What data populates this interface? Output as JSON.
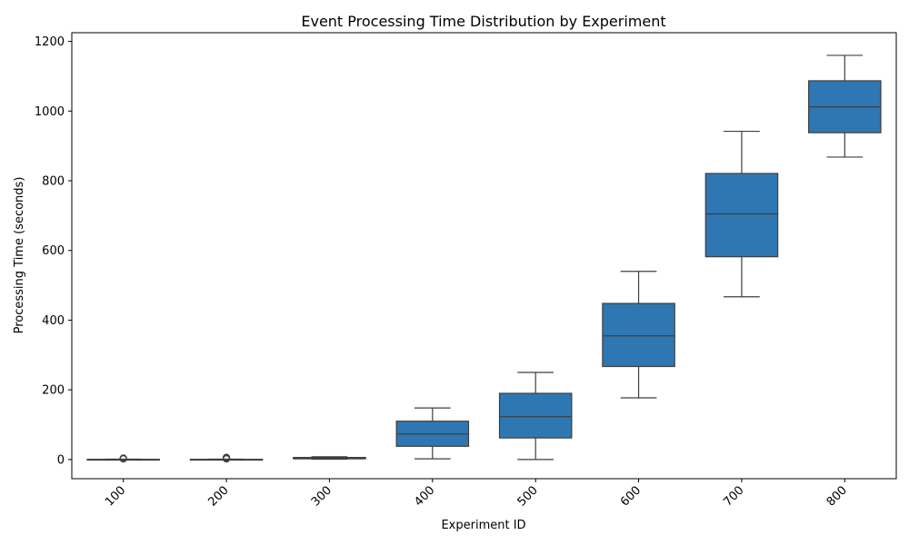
{
  "chart_data": {
    "type": "box",
    "title": "Event Processing Time Distribution by Experiment",
    "xlabel": "Experiment ID",
    "ylabel": "Processing Time (seconds)",
    "categories": [
      "100",
      "200",
      "300",
      "400",
      "500",
      "600",
      "700",
      "800"
    ],
    "ylim": [
      -55,
      1225
    ],
    "yticks": [
      0,
      200,
      400,
      600,
      800,
      1000,
      1200
    ],
    "grid": false,
    "legend": "none",
    "box_color": "#2f77b2",
    "line_color": "#3f3f3f",
    "boxes": [
      {
        "category": "100",
        "whisker_low": 0,
        "q1": 0,
        "median": 0,
        "q3": 0.5,
        "whisker_high": 1,
        "outliers": [
          2,
          3,
          4
        ]
      },
      {
        "category": "200",
        "whisker_low": 0,
        "q1": 0,
        "median": 0,
        "q3": 0.5,
        "whisker_high": 1,
        "outliers": [
          2,
          3,
          5,
          6
        ]
      },
      {
        "category": "300",
        "whisker_low": 1,
        "q1": 2,
        "median": 4,
        "q3": 6,
        "whisker_high": 8,
        "outliers": []
      },
      {
        "category": "400",
        "whisker_low": 2,
        "q1": 38,
        "median": 73,
        "q3": 110,
        "whisker_high": 148,
        "outliers": []
      },
      {
        "category": "500",
        "whisker_low": 0,
        "q1": 62,
        "median": 123,
        "q3": 190,
        "whisker_high": 250,
        "outliers": []
      },
      {
        "category": "600",
        "whisker_low": 177,
        "q1": 267,
        "median": 355,
        "q3": 448,
        "whisker_high": 540,
        "outliers": []
      },
      {
        "category": "700",
        "whisker_low": 467,
        "q1": 582,
        "median": 705,
        "q3": 821,
        "whisker_high": 942,
        "outliers": []
      },
      {
        "category": "800",
        "whisker_low": 868,
        "q1": 938,
        "median": 1012,
        "q3": 1087,
        "whisker_high": 1160,
        "outliers": []
      }
    ]
  }
}
